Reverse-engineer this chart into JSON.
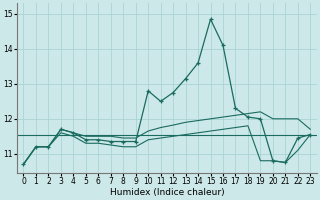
{
  "xlabel": "Humidex (Indice chaleur)",
  "ylabel": "",
  "bg_color": "#cce8e8",
  "line_color": "#1a6b60",
  "hours": [
    0,
    1,
    2,
    3,
    4,
    5,
    6,
    7,
    8,
    9,
    10,
    11,
    12,
    13,
    14,
    15,
    16,
    17,
    18,
    19,
    20,
    21,
    22,
    23
  ],
  "main_values": [
    10.7,
    11.2,
    11.2,
    11.7,
    11.6,
    11.4,
    11.4,
    11.35,
    11.35,
    11.35,
    12.8,
    12.5,
    12.75,
    13.15,
    13.6,
    14.85,
    14.1,
    12.3,
    12.05,
    12.0,
    10.8,
    10.75,
    11.45,
    11.55
  ],
  "upper_values": [
    10.7,
    11.2,
    11.2,
    11.7,
    11.6,
    11.5,
    11.5,
    11.5,
    11.45,
    11.45,
    11.65,
    11.75,
    11.82,
    11.9,
    11.95,
    12.0,
    12.05,
    12.1,
    12.15,
    12.2,
    12.0,
    12.0,
    12.0,
    11.7
  ],
  "lower_values": [
    10.7,
    11.2,
    11.2,
    11.6,
    11.5,
    11.3,
    11.3,
    11.25,
    11.2,
    11.2,
    11.4,
    11.45,
    11.5,
    11.55,
    11.6,
    11.65,
    11.7,
    11.75,
    11.8,
    10.8,
    10.8,
    10.75,
    11.1,
    11.55
  ],
  "flat_line_y": 11.55,
  "ylim": [
    10.45,
    15.3
  ],
  "xlim": [
    -0.5,
    23.5
  ],
  "yticks": [
    11,
    12,
    13,
    14,
    15
  ],
  "xticks": [
    0,
    1,
    2,
    3,
    4,
    5,
    6,
    7,
    8,
    9,
    10,
    11,
    12,
    13,
    14,
    15,
    16,
    17,
    18,
    19,
    20,
    21,
    22,
    23
  ],
  "grid_color": "#aad4d4",
  "xlabel_fontsize": 6.5,
  "tick_fontsize": 5.5
}
